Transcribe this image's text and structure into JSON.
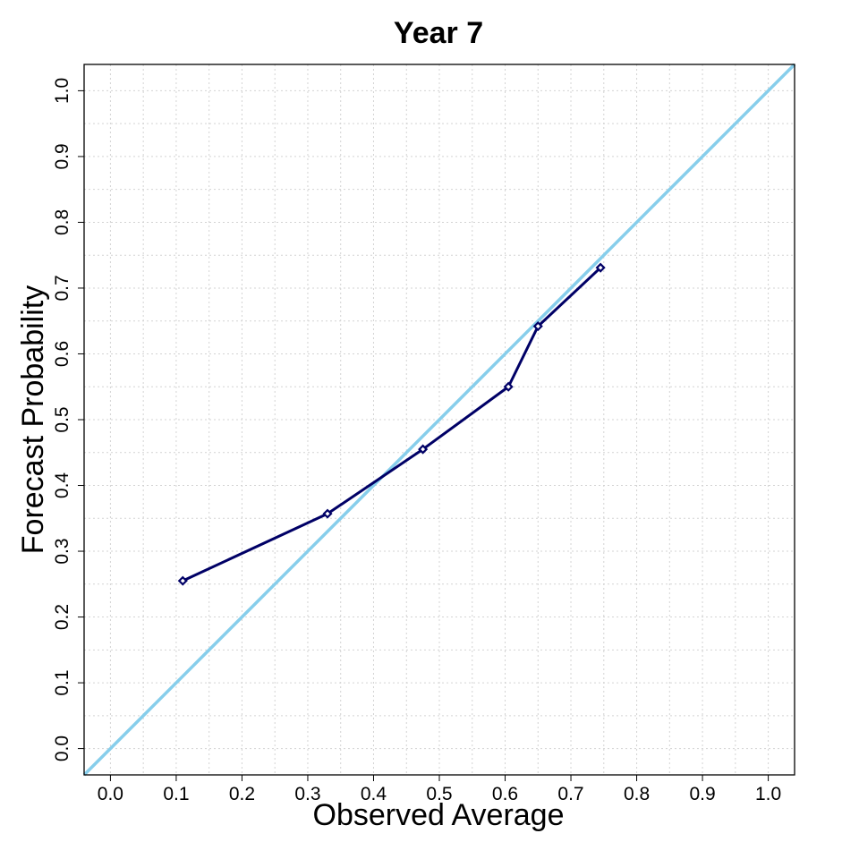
{
  "chart_data": {
    "type": "line",
    "title": "Year 7",
    "xlabel": "Observed Average",
    "ylabel": "Forecast Probability",
    "xlim": [
      -0.04,
      1.04
    ],
    "ylim": [
      -0.04,
      1.04
    ],
    "ticks": [
      "0.0",
      "0.1",
      "0.2",
      "0.3",
      "0.4",
      "0.5",
      "0.6",
      "0.7",
      "0.8",
      "0.9",
      "1.0"
    ],
    "grid": true,
    "series": [
      {
        "x": [
          0.11,
          0.33,
          0.475,
          0.605,
          0.65,
          0.745
        ],
        "y": [
          0.255,
          0.357,
          0.455,
          0.55,
          0.642,
          0.731
        ],
        "color": "#000066",
        "marker": "diamond"
      }
    ],
    "reference_line": {
      "x": [
        -0.04,
        1.04
      ],
      "y": [
        -0.04,
        1.04
      ],
      "color": "#87CEEB"
    }
  }
}
